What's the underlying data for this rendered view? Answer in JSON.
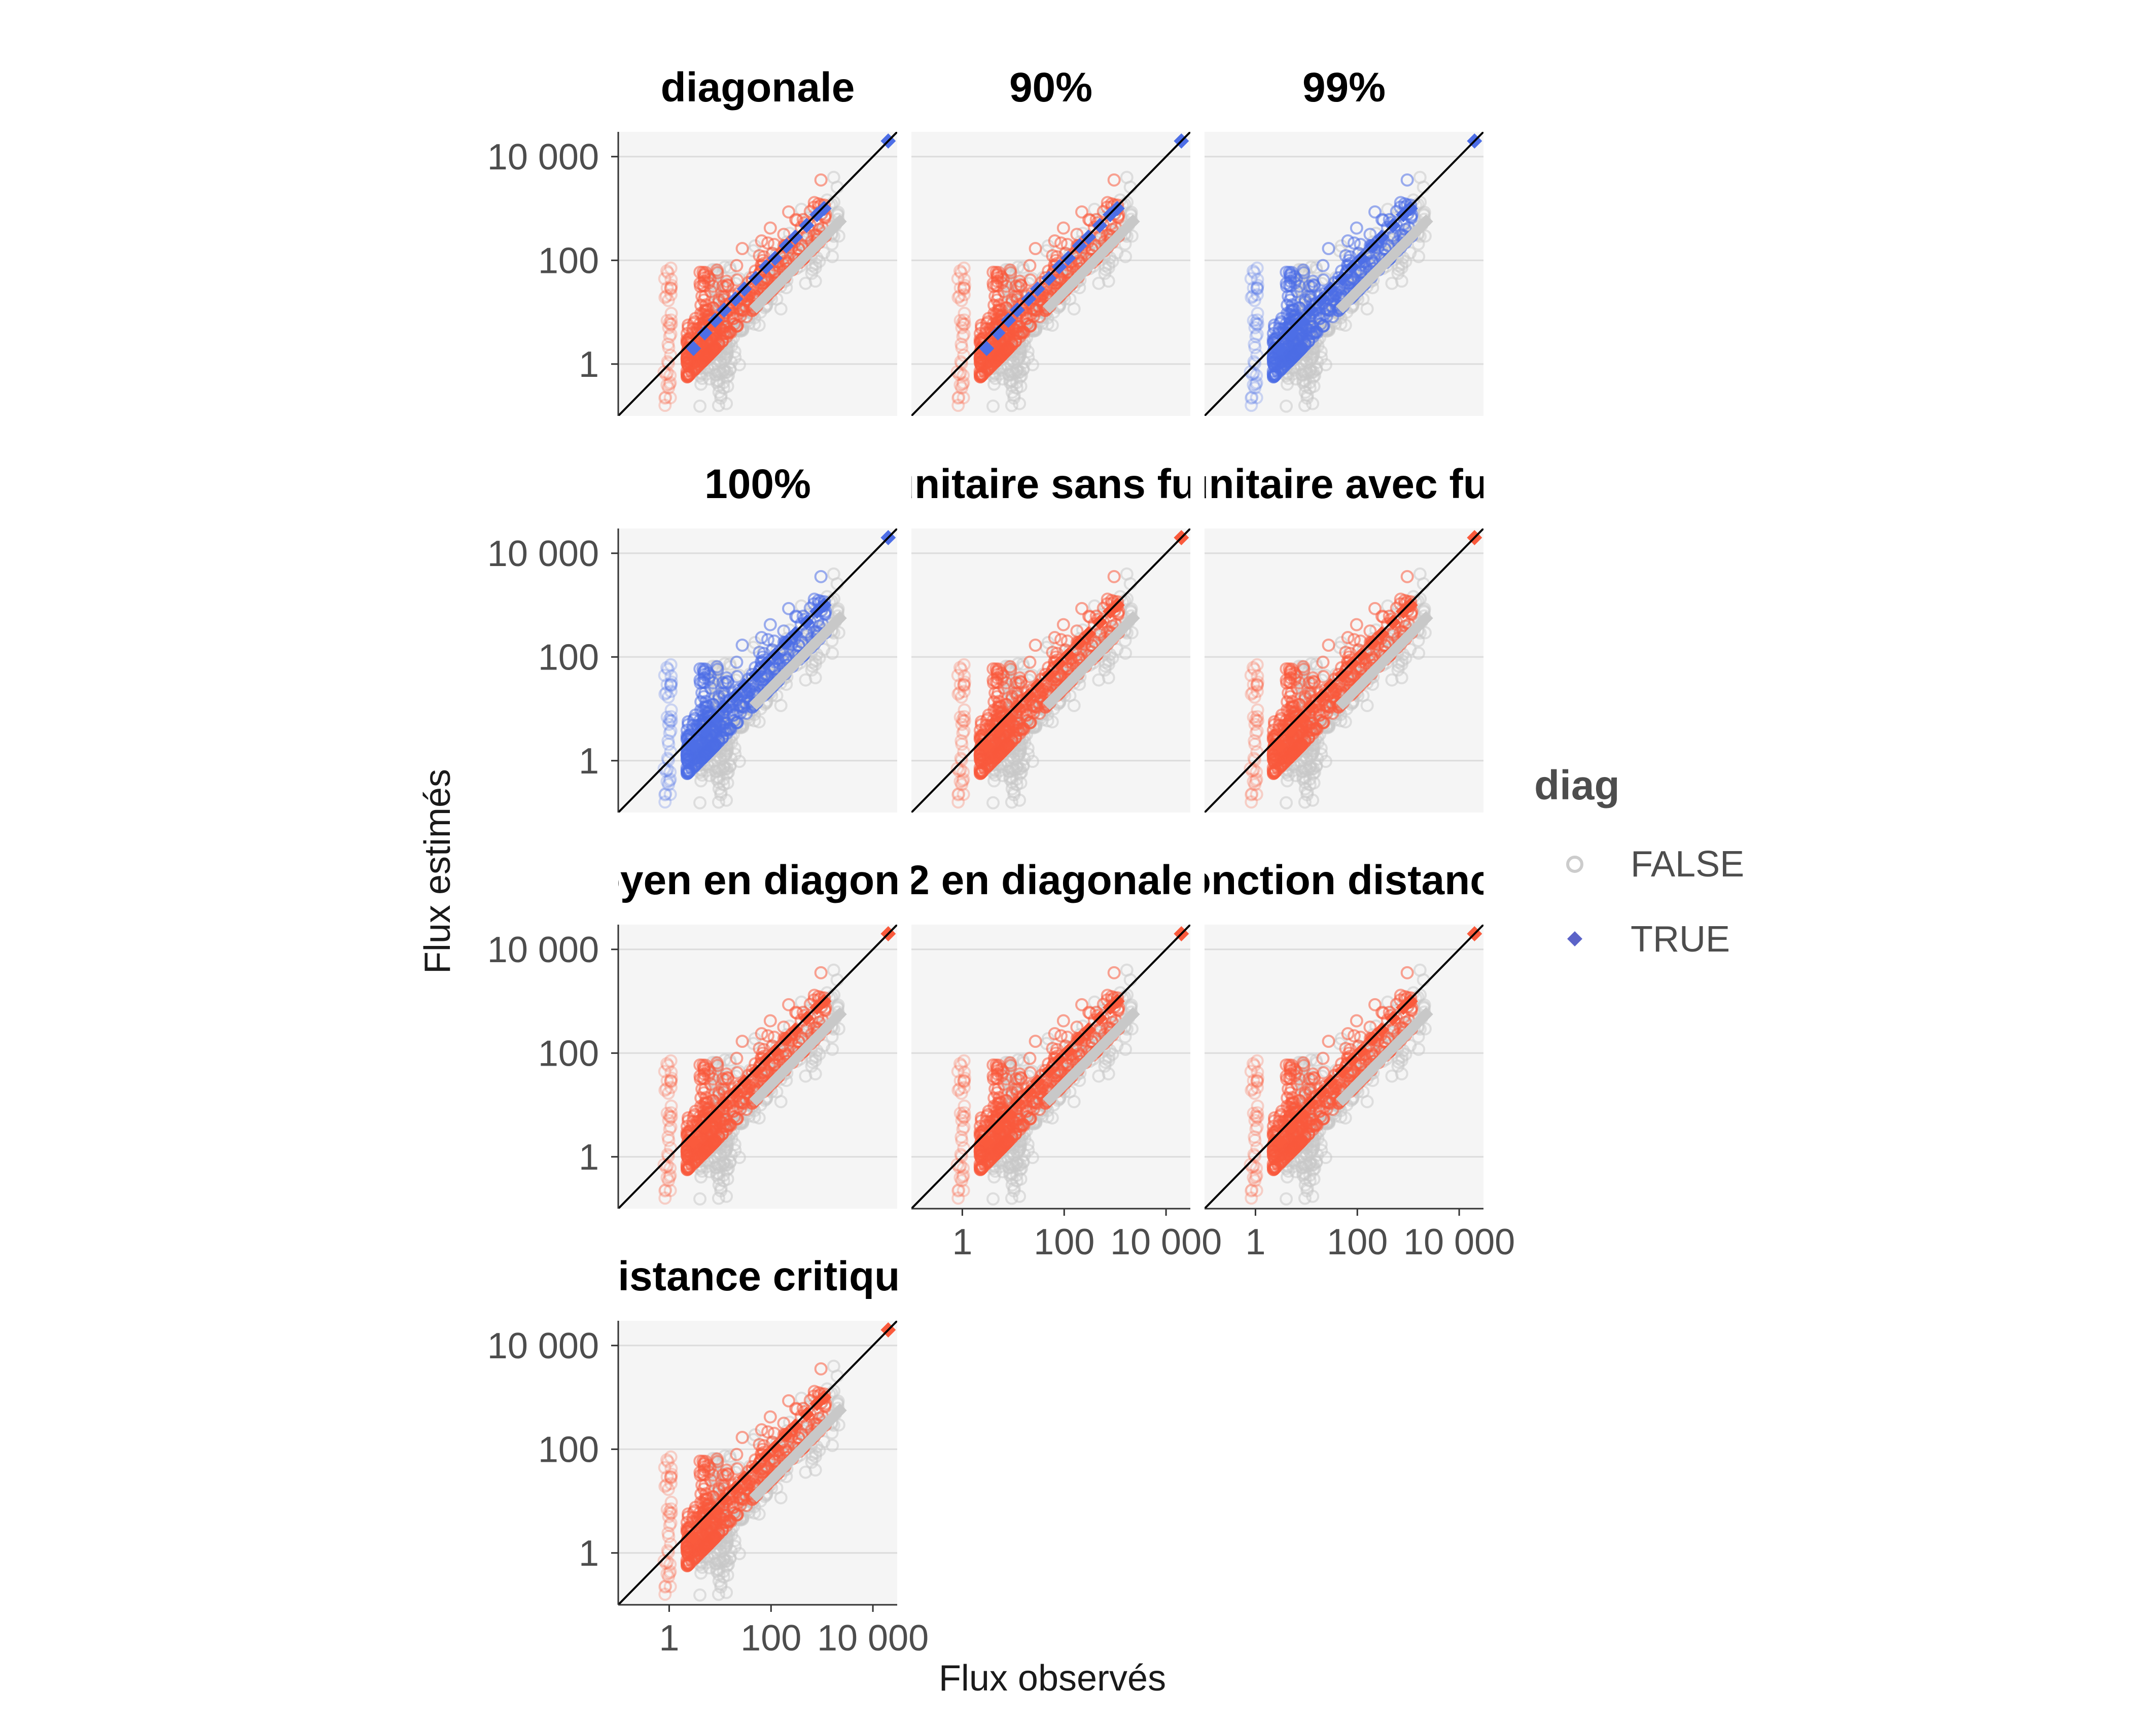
{
  "chart_data": {
    "type": "scatter",
    "facets": [
      "diagonale",
      "90%",
      "99%",
      "100%",
      "unitaire sans fur",
      "unitaire avec fur",
      "moyen en diagonale",
      "2 en diagonale",
      "fonction distance",
      "distance critique"
    ],
    "xlabel": "Flux observés",
    "ylabel": "Flux estimés",
    "xscale": "log10",
    "yscale": "log10",
    "xlim": [
      0.1,
      30000
    ],
    "ylim": [
      0.1,
      30000
    ],
    "x_ticks": [
      1,
      100,
      10000
    ],
    "y_ticks": [
      1,
      100,
      10000
    ],
    "x_tick_labels": [
      "1",
      "100",
      "10 000"
    ],
    "y_tick_labels": [
      "1",
      "100",
      "10 000"
    ],
    "reference_line": "y = x",
    "grid": true,
    "legend": {
      "title": "diag",
      "position": "right",
      "entries": [
        {
          "label": "FALSE",
          "shape": "open-circle",
          "color": "#cccccc"
        },
        {
          "label": "TRUE",
          "shape": "diamond",
          "color": "#5b63c8"
        }
      ]
    },
    "colors": {
      "highlight_red": "#fa5a3c",
      "highlight_blue": "#4d6ee6",
      "grey": "#c8c8c8",
      "panel_bg": "#f5f5f5",
      "grid": "#dcdcdc"
    },
    "panels": [
      {
        "facet": "diagonale",
        "highlight": "red",
        "diag_color": "blue"
      },
      {
        "facet": "90%",
        "highlight": "red",
        "diag_color": "blue"
      },
      {
        "facet": "99%",
        "highlight": "blue",
        "diag_color": "blue"
      },
      {
        "facet": "100%",
        "highlight": "blue",
        "diag_color": "blue"
      },
      {
        "facet": "unitaire sans fur",
        "highlight": "red",
        "diag_color": "red"
      },
      {
        "facet": "unitaire avec fur",
        "highlight": "red",
        "diag_color": "red"
      },
      {
        "facet": "moyen en diagonale",
        "highlight": "red",
        "diag_color": "red"
      },
      {
        "facet": "2 en diagonale",
        "highlight": "red",
        "diag_color": "red"
      },
      {
        "facet": "fonction distance",
        "highlight": "red",
        "diag_color": "red"
      },
      {
        "facet": "distance critique",
        "highlight": "red",
        "diag_color": "red"
      }
    ],
    "true_points": [
      [
        3,
        2
      ],
      [
        5,
        4
      ],
      [
        8,
        7
      ],
      [
        12,
        11
      ],
      [
        20,
        18
      ],
      [
        30,
        28
      ],
      [
        50,
        45
      ],
      [
        80,
        75
      ],
      [
        120,
        110
      ],
      [
        200,
        190
      ],
      [
        300,
        280
      ],
      [
        500,
        470
      ],
      [
        800,
        760
      ],
      [
        1100,
        1000
      ],
      [
        20000,
        20000
      ]
    ]
  }
}
